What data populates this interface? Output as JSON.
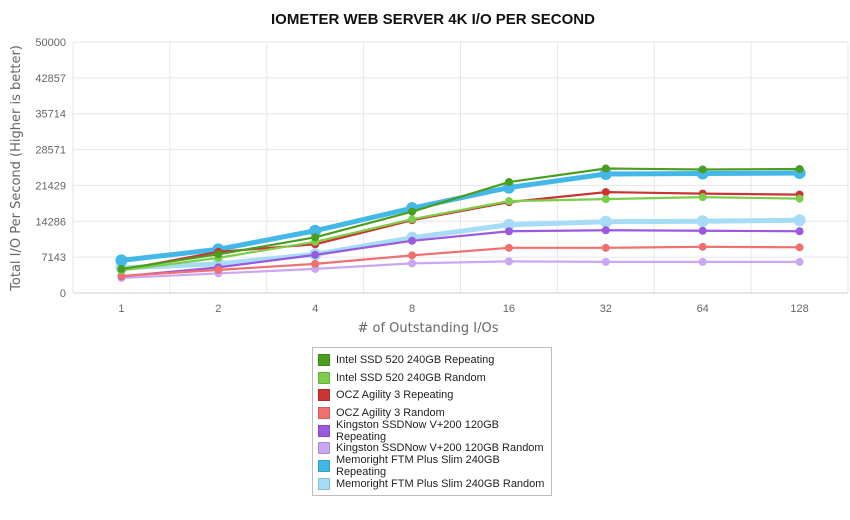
{
  "chart_data": {
    "type": "line",
    "title": "IOMETER WEB SERVER 4K I/O PER SECOND",
    "xlabel": "# of Outstanding I/Os",
    "ylabel": "Total I/O Per Second (Higher is better)",
    "categories": [
      "1",
      "2",
      "4",
      "8",
      "16",
      "32",
      "64",
      "128"
    ],
    "yticks": [
      "0",
      "7143",
      "14286",
      "21429",
      "28571",
      "35714",
      "42857",
      "50000"
    ],
    "ylim": [
      0,
      50000
    ],
    "grid": true,
    "legend_position": "bottom-center",
    "series": [
      {
        "name": "Intel SSD 520 240GB Repeating",
        "color": "#4a9e1f",
        "values": [
          4800,
          7700,
          11100,
          16200,
          22100,
          24800,
          24600,
          24700
        ]
      },
      {
        "name": "Intel SSD 520 240GB Random",
        "color": "#7ccd4a",
        "values": [
          4500,
          7000,
          10200,
          14700,
          18300,
          18700,
          19100,
          18800
        ]
      },
      {
        "name": "OCZ Agility 3 Repeating",
        "color": "#cc3333",
        "values": [
          4600,
          8200,
          9700,
          14500,
          18100,
          20100,
          19800,
          19600
        ]
      },
      {
        "name": "OCZ Agility 3 Random",
        "color": "#f07070",
        "values": [
          3400,
          4600,
          5800,
          7500,
          9000,
          9000,
          9200,
          9100
        ]
      },
      {
        "name": "Kingston SSDNow V+200 120GB Repeating",
        "color": "#9b59e0",
        "values": [
          3300,
          5100,
          7600,
          10400,
          12300,
          12500,
          12400,
          12300
        ]
      },
      {
        "name": "Kingston SSDNow V+200 120GB Random",
        "color": "#cba6f2",
        "values": [
          3000,
          3900,
          4800,
          5900,
          6300,
          6200,
          6200,
          6200
        ]
      },
      {
        "name": "Memoright FTM Plus Slim 240GB Repeating",
        "color": "#43b8e8",
        "values": [
          6500,
          8700,
          12400,
          16900,
          21000,
          23700,
          23800,
          23900
        ]
      },
      {
        "name": "Memoright FTM Plus Slim 240GB Random",
        "color": "#a6dcf5",
        "values": [
          5000,
          5800,
          7700,
          11000,
          13600,
          14200,
          14300,
          14500
        ]
      }
    ]
  }
}
